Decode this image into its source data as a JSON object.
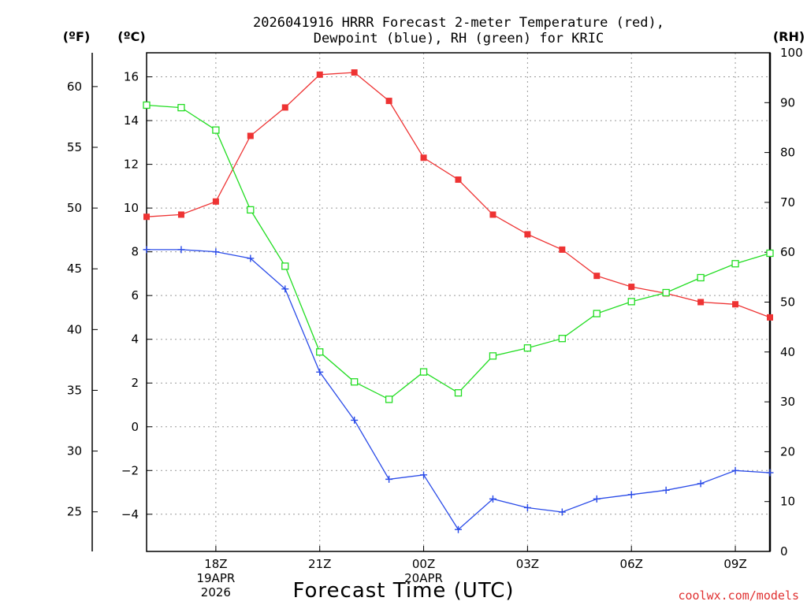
{
  "chart_data": {
    "type": "line",
    "title": [
      "2026041916 HRRR Forecast 2-meter Temperature (red),",
      "Dewpoint (blue), RH (green) for KRIC"
    ],
    "xlabel": "Forecast Time (UTC)",
    "credit": "coolwx.com/models",
    "unit_labels": {
      "fahrenheit": "(ºF)",
      "celsius": "(ºC)",
      "rh": "(RH)"
    },
    "x_hours": [
      16,
      17,
      18,
      19,
      20,
      21,
      22,
      23,
      24,
      25,
      26,
      27,
      28,
      29,
      30,
      31,
      32,
      33,
      34
    ],
    "x_ticks": [
      {
        "hour": 18,
        "lines": [
          "18Z",
          "19APR",
          "2026"
        ]
      },
      {
        "hour": 21,
        "lines": [
          "21Z"
        ]
      },
      {
        "hour": 24,
        "lines": [
          "00Z",
          "20APR"
        ]
      },
      {
        "hour": 27,
        "lines": [
          "03Z"
        ]
      },
      {
        "hour": 30,
        "lines": [
          "06Z"
        ]
      },
      {
        "hour": 33,
        "lines": [
          "09Z"
        ]
      }
    ],
    "xlim": [
      16,
      34
    ],
    "celsius_axis": {
      "ylim": [
        -5.7,
        17.1
      ],
      "ticks": [
        16,
        14,
        12,
        10,
        8,
        6,
        4,
        2,
        0,
        -2,
        -4
      ],
      "labels": [
        "16",
        "14",
        "12",
        "10",
        "8",
        "6",
        "4",
        "2",
        "0",
        "−2",
        "−4"
      ]
    },
    "fahrenheit_axis": {
      "ticks": [
        60,
        55,
        50,
        45,
        40,
        35,
        30,
        25
      ]
    },
    "rh_axis": {
      "ylim": [
        0,
        100
      ],
      "ticks": [
        100,
        90,
        80,
        70,
        60,
        50,
        40,
        30,
        20,
        10,
        0
      ]
    },
    "grid": true,
    "series": [
      {
        "name": "Temperature",
        "axis": "celsius",
        "color": "#ee3333",
        "marker": "filled-square",
        "values": [
          9.6,
          9.7,
          10.3,
          13.3,
          14.6,
          16.1,
          16.2,
          14.9,
          12.3,
          11.3,
          9.7,
          8.8,
          8.1,
          6.9,
          6.4,
          6.1,
          5.7,
          5.6,
          5.0
        ]
      },
      {
        "name": "Dewpoint",
        "axis": "celsius",
        "color": "#2a4be8",
        "marker": "plus",
        "values": [
          8.1,
          8.1,
          8.0,
          7.7,
          6.3,
          2.5,
          0.3,
          -2.4,
          -2.2,
          -4.7,
          -3.3,
          -3.7,
          -3.9,
          -3.3,
          -3.1,
          -2.9,
          -2.6,
          -2.0,
          -2.1
        ]
      },
      {
        "name": "RH",
        "axis": "rh",
        "color": "#22dd22",
        "marker": "open-square",
        "values": [
          89.5,
          89.0,
          84.5,
          68.5,
          57.2,
          40.0,
          34.0,
          30.5,
          36.0,
          31.8,
          39.2,
          40.8,
          42.7,
          47.7,
          50.1,
          51.9,
          54.9,
          57.7,
          59.8
        ]
      }
    ]
  }
}
